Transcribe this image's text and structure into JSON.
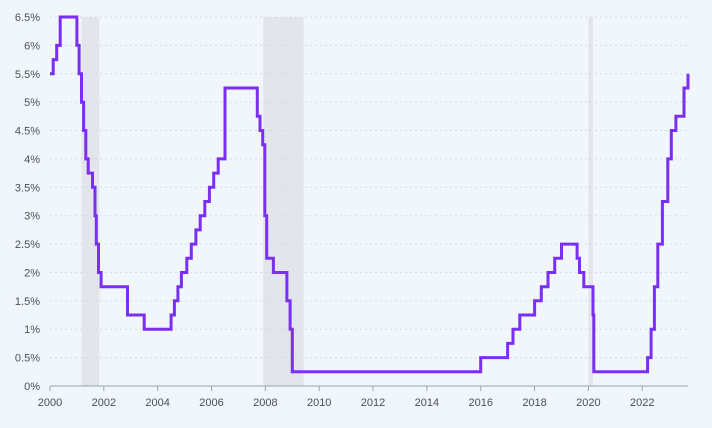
{
  "chart_data": {
    "type": "line",
    "title": "",
    "xlabel": "",
    "ylabel": "",
    "xlim": [
      2000,
      2023.7
    ],
    "ylim": [
      0,
      6.5
    ],
    "grid": true,
    "legend": "none",
    "x_ticks": [
      {
        "value": 2000,
        "label": "2000"
      },
      {
        "value": 2002,
        "label": "2002"
      },
      {
        "value": 2004,
        "label": "2004"
      },
      {
        "value": 2006,
        "label": "2006"
      },
      {
        "value": 2008,
        "label": "2008"
      },
      {
        "value": 2010,
        "label": "2010"
      },
      {
        "value": 2012,
        "label": "2012"
      },
      {
        "value": 2014,
        "label": "2014"
      },
      {
        "value": 2016,
        "label": "2016"
      },
      {
        "value": 2018,
        "label": "2018"
      },
      {
        "value": 2020,
        "label": "2020"
      },
      {
        "value": 2022,
        "label": "2022"
      }
    ],
    "y_ticks": [
      {
        "value": 0,
        "label": "0%"
      },
      {
        "value": 0.5,
        "label": "0.5%"
      },
      {
        "value": 1,
        "label": "1%"
      },
      {
        "value": 1.5,
        "label": "1.5%"
      },
      {
        "value": 2,
        "label": "2%"
      },
      {
        "value": 2.5,
        "label": "2.5%"
      },
      {
        "value": 3,
        "label": "3%"
      },
      {
        "value": 3.5,
        "label": "3.5%"
      },
      {
        "value": 4,
        "label": "4%"
      },
      {
        "value": 4.5,
        "label": "4.5%"
      },
      {
        "value": 5,
        "label": "5%"
      },
      {
        "value": 5.5,
        "label": "5.5%"
      },
      {
        "value": 6,
        "label": "6%"
      },
      {
        "value": 6.5,
        "label": "6.5%"
      }
    ],
    "shaded_periods": [
      {
        "start": 2001.17,
        "end": 2001.83
      },
      {
        "start": 2007.92,
        "end": 2009.42
      },
      {
        "start": 2020.0,
        "end": 2020.17
      }
    ],
    "series": [
      {
        "type": "step",
        "x": [
          2000.0,
          2000.12,
          2000.25,
          2000.38,
          2001.0,
          2001.08,
          2001.17,
          2001.25,
          2001.33,
          2001.42,
          2001.58,
          2001.67,
          2001.72,
          2001.8,
          2001.9,
          2002.0,
          2002.88,
          2003.5,
          2004.5,
          2004.62,
          2004.75,
          2004.88,
          2005.08,
          2005.25,
          2005.42,
          2005.58,
          2005.75,
          2005.92,
          2006.08,
          2006.25,
          2006.5,
          2007.7,
          2007.8,
          2007.9,
          2007.98,
          2008.05,
          2008.3,
          2008.8,
          2008.92,
          2009.0,
          2016.0,
          2017.0,
          2017.2,
          2017.45,
          2018.0,
          2018.25,
          2018.5,
          2018.75,
          2019.0,
          2019.58,
          2019.67,
          2019.83,
          2020.17,
          2020.2,
          2022.2,
          2022.33,
          2022.45,
          2022.58,
          2022.75,
          2022.95,
          2023.08,
          2023.25,
          2023.55,
          2023.7
        ],
        "y": [
          5.5,
          5.75,
          6.0,
          6.5,
          6.0,
          5.5,
          5.0,
          4.5,
          4.0,
          3.75,
          3.5,
          3.0,
          2.5,
          2.0,
          1.75,
          1.75,
          1.25,
          1.0,
          1.25,
          1.5,
          1.75,
          2.0,
          2.25,
          2.5,
          2.75,
          3.0,
          3.25,
          3.5,
          3.75,
          4.0,
          5.25,
          4.75,
          4.5,
          4.25,
          3.0,
          2.25,
          2.0,
          1.5,
          1.0,
          0.25,
          0.5,
          0.75,
          1.0,
          1.25,
          1.5,
          1.75,
          2.0,
          2.25,
          2.5,
          2.25,
          2.0,
          1.75,
          1.25,
          0.25,
          0.5,
          1.0,
          1.75,
          2.5,
          3.25,
          4.0,
          4.5,
          4.75,
          5.25,
          5.5
        ],
        "color": "#7b2ff2"
      }
    ],
    "colors": {
      "line": "#7b2ff2",
      "shade": "#e2e5ea",
      "grid": "#d5dce4",
      "axis": "#9aa3ad",
      "background": "#f1f6fb"
    }
  }
}
